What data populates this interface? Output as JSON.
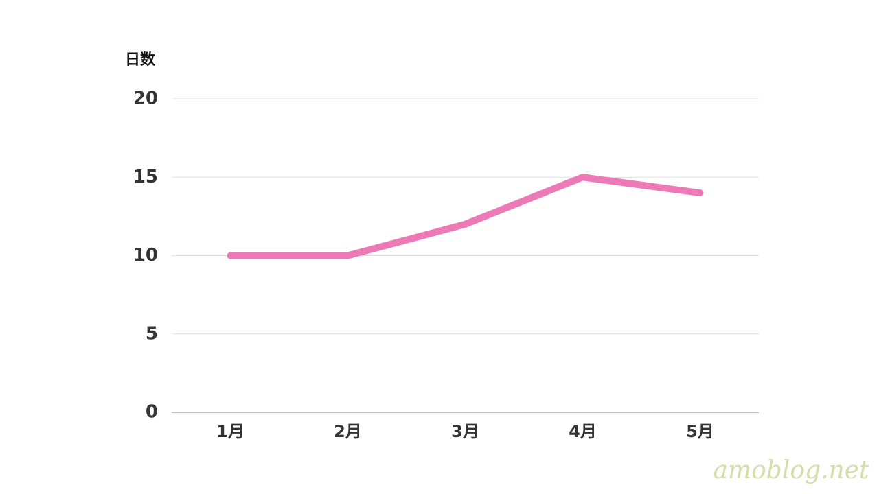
{
  "chart_data": {
    "type": "line",
    "y_label": "日数",
    "categories": [
      "1月",
      "2月",
      "3月",
      "4月",
      "5月"
    ],
    "values": [
      10,
      10,
      12,
      15,
      14
    ],
    "color": "#ec7ab6",
    "ylim": [
      0,
      20
    ],
    "yticks": [
      0,
      5,
      10,
      15,
      20
    ],
    "grid": true
  },
  "watermark": "amoblog.net"
}
